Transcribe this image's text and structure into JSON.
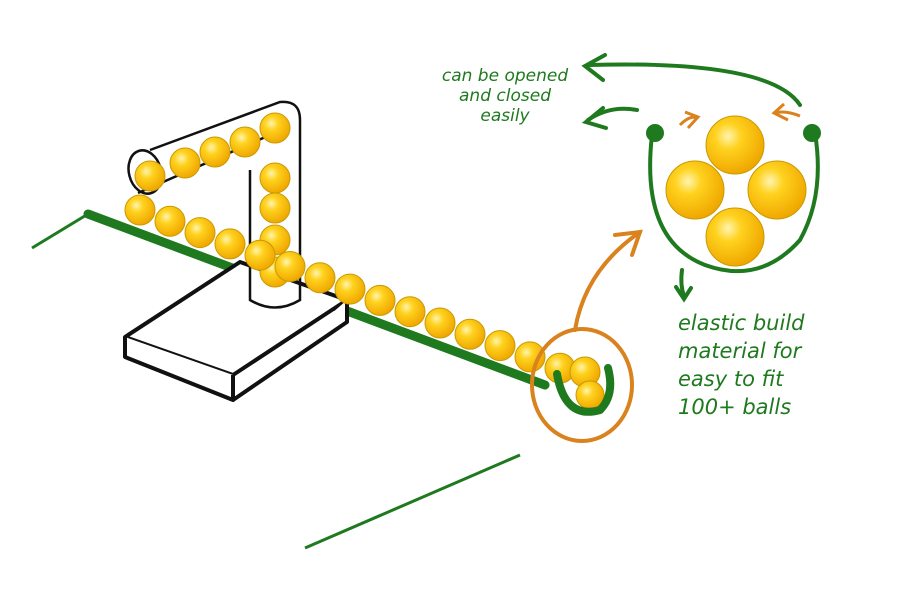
{
  "annotations": {
    "open_close": [
      "can be opened",
      "and closed",
      "easily"
    ],
    "material": [
      "elastic build",
      "material for",
      "easy to fit",
      "100+ balls"
    ]
  },
  "colors": {
    "green": "#1f7a1f",
    "orange": "#d9821e",
    "ball": "#f5c518",
    "ball_highlight": "#fff3a8",
    "ball_outline": "#c89a00",
    "ink": "#111111"
  }
}
